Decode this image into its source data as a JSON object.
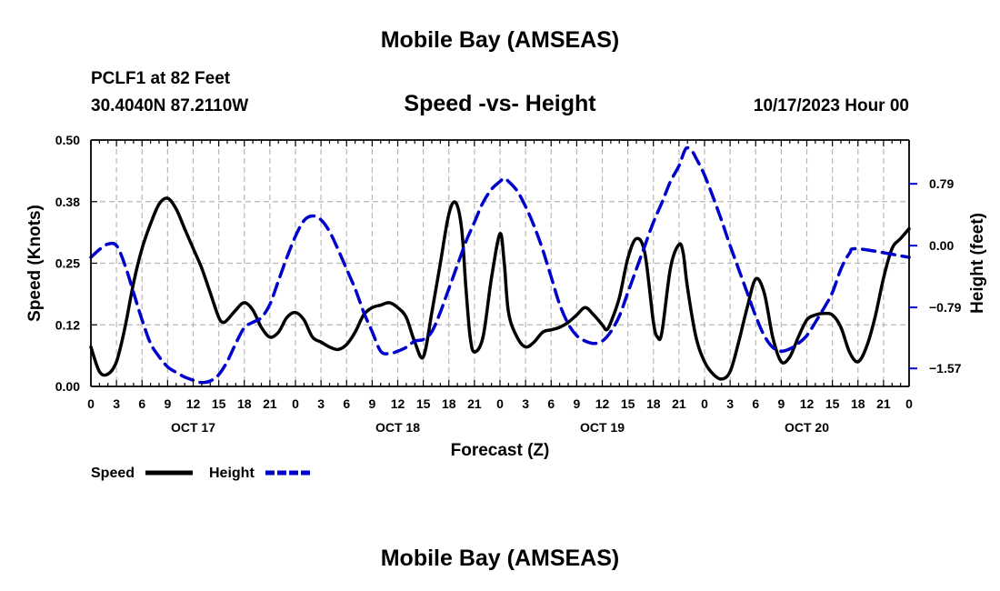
{
  "header": {
    "title": "Mobile Bay (AMSEAS)",
    "station": "PCLF1 at 82 Feet",
    "coordinates": "30.4040N  87.2110W",
    "subtitle": "Speed -vs- Height",
    "datetime": "10/17/2023 Hour 00"
  },
  "footer": {
    "title": "Mobile Bay (AMSEAS)"
  },
  "chart_data": {
    "type": "line",
    "title": "Speed -vs- Height",
    "xlabel": "Forecast (Z)",
    "ylabel": "Speed (Knots)",
    "y2label": "Height (feet)",
    "xlim": [
      0,
      96
    ],
    "ylim": [
      0,
      0.5
    ],
    "y2lim": [
      -1.8,
      1.35
    ],
    "grid": true,
    "legend": "bottom-left",
    "x_ticks": [
      0,
      3,
      6,
      9,
      12,
      15,
      18,
      21,
      24,
      27,
      30,
      33,
      36,
      39,
      42,
      45,
      48,
      51,
      54,
      57,
      60,
      63,
      66,
      69,
      72,
      75,
      78,
      81,
      84,
      87,
      90,
      93,
      96
    ],
    "x_tick_labels": [
      "0",
      "3",
      "6",
      "9",
      "12",
      "15",
      "18",
      "21",
      "0",
      "3",
      "6",
      "9",
      "12",
      "15",
      "18",
      "21",
      "0",
      "3",
      "6",
      "9",
      "12",
      "15",
      "18",
      "21",
      "0",
      "3",
      "6",
      "9",
      "12",
      "15",
      "18",
      "21",
      "0"
    ],
    "day_labels": [
      {
        "label": "OCT 17",
        "x": 12
      },
      {
        "label": "OCT 18",
        "x": 36
      },
      {
        "label": "OCT 19",
        "x": 60
      },
      {
        "label": "OCT 20",
        "x": 84
      }
    ],
    "y_ticks": [
      0.0,
      0.125,
      0.25,
      0.375,
      0.5
    ],
    "y_tick_labels": [
      "0.00",
      "0.12",
      "0.25",
      "0.38",
      "0.50"
    ],
    "y2_ticks": [
      0.79,
      0.0,
      -0.79,
      -1.57
    ],
    "y2_tick_labels": [
      "0.79",
      "0.00",
      "−0.79",
      "−1.57"
    ],
    "series": [
      {
        "name": "Speed",
        "axis": "left",
        "color": "#000000",
        "dash": "solid",
        "points": [
          [
            0,
            0.08
          ],
          [
            1,
            0.03
          ],
          [
            2,
            0.025
          ],
          [
            3,
            0.05
          ],
          [
            4,
            0.12
          ],
          [
            5,
            0.21
          ],
          [
            6,
            0.28
          ],
          [
            7,
            0.33
          ],
          [
            8,
            0.37
          ],
          [
            9,
            0.382
          ],
          [
            10,
            0.36
          ],
          [
            11,
            0.32
          ],
          [
            12,
            0.28
          ],
          [
            13,
            0.24
          ],
          [
            14,
            0.19
          ],
          [
            15,
            0.14
          ],
          [
            15.5,
            0.13
          ],
          [
            16,
            0.135
          ],
          [
            17,
            0.155
          ],
          [
            18,
            0.17
          ],
          [
            19,
            0.155
          ],
          [
            20,
            0.12
          ],
          [
            21,
            0.1
          ],
          [
            22,
            0.11
          ],
          [
            23,
            0.14
          ],
          [
            24,
            0.15
          ],
          [
            25,
            0.135
          ],
          [
            26,
            0.1
          ],
          [
            27,
            0.09
          ],
          [
            28,
            0.08
          ],
          [
            29,
            0.075
          ],
          [
            30,
            0.085
          ],
          [
            31,
            0.11
          ],
          [
            32,
            0.145
          ],
          [
            33,
            0.16
          ],
          [
            34,
            0.165
          ],
          [
            35,
            0.17
          ],
          [
            36,
            0.16
          ],
          [
            37,
            0.14
          ],
          [
            38,
            0.09
          ],
          [
            39,
            0.06
          ],
          [
            40,
            0.15
          ],
          [
            41,
            0.25
          ],
          [
            42,
            0.35
          ],
          [
            42.8,
            0.373
          ],
          [
            43.5,
            0.32
          ],
          [
            44,
            0.2
          ],
          [
            44.5,
            0.1
          ],
          [
            45,
            0.07
          ],
          [
            46,
            0.1
          ],
          [
            47,
            0.22
          ],
          [
            48,
            0.31
          ],
          [
            48.5,
            0.25
          ],
          [
            49,
            0.15
          ],
          [
            50,
            0.1
          ],
          [
            51,
            0.08
          ],
          [
            52,
            0.09
          ],
          [
            53,
            0.11
          ],
          [
            54,
            0.115
          ],
          [
            55,
            0.12
          ],
          [
            56,
            0.13
          ],
          [
            57,
            0.145
          ],
          [
            58,
            0.16
          ],
          [
            59,
            0.145
          ],
          [
            60,
            0.125
          ],
          [
            60.5,
            0.115
          ],
          [
            61,
            0.13
          ],
          [
            62,
            0.18
          ],
          [
            63,
            0.26
          ],
          [
            64,
            0.3
          ],
          [
            65,
            0.27
          ],
          [
            66,
            0.13
          ],
          [
            66.5,
            0.1
          ],
          [
            67,
            0.11
          ],
          [
            68,
            0.24
          ],
          [
            69,
            0.288
          ],
          [
            69.5,
            0.27
          ],
          [
            70,
            0.2
          ],
          [
            71,
            0.1
          ],
          [
            72,
            0.05
          ],
          [
            73,
            0.025
          ],
          [
            74,
            0.015
          ],
          [
            75,
            0.03
          ],
          [
            76,
            0.09
          ],
          [
            77,
            0.16
          ],
          [
            78,
            0.218
          ],
          [
            79,
            0.19
          ],
          [
            80,
            0.1
          ],
          [
            81,
            0.05
          ],
          [
            82,
            0.06
          ],
          [
            83,
            0.1
          ],
          [
            84,
            0.135
          ],
          [
            85,
            0.145
          ],
          [
            86,
            0.148
          ],
          [
            87,
            0.145
          ],
          [
            88,
            0.12
          ],
          [
            89,
            0.07
          ],
          [
            90,
            0.05
          ],
          [
            91,
            0.08
          ],
          [
            92,
            0.14
          ],
          [
            93,
            0.22
          ],
          [
            94,
            0.28
          ],
          [
            95,
            0.3
          ],
          [
            96,
            0.32
          ]
        ]
      },
      {
        "name": "Height",
        "axis": "right",
        "color": "#0000cc",
        "dash": "dashed",
        "points": [
          [
            0,
            -0.15
          ],
          [
            1,
            -0.05
          ],
          [
            2,
            0.02
          ],
          [
            3,
            0.0
          ],
          [
            4,
            -0.25
          ],
          [
            5,
            -0.6
          ],
          [
            6,
            -0.95
          ],
          [
            7,
            -1.25
          ],
          [
            8,
            -1.42
          ],
          [
            9,
            -1.55
          ],
          [
            10,
            -1.62
          ],
          [
            11,
            -1.68
          ],
          [
            12,
            -1.72
          ],
          [
            13,
            -1.75
          ],
          [
            14,
            -1.73
          ],
          [
            15,
            -1.65
          ],
          [
            16,
            -1.48
          ],
          [
            17,
            -1.25
          ],
          [
            18,
            -1.05
          ],
          [
            19,
            -0.98
          ],
          [
            20,
            -0.92
          ],
          [
            21,
            -0.75
          ],
          [
            22,
            -0.45
          ],
          [
            23,
            -0.15
          ],
          [
            24,
            0.12
          ],
          [
            25,
            0.32
          ],
          [
            26,
            0.38
          ],
          [
            27,
            0.33
          ],
          [
            28,
            0.18
          ],
          [
            29,
            -0.05
          ],
          [
            30,
            -0.3
          ],
          [
            31,
            -0.55
          ],
          [
            32,
            -0.85
          ],
          [
            33,
            -1.1
          ],
          [
            34,
            -1.35
          ],
          [
            35,
            -1.38
          ],
          [
            36,
            -1.35
          ],
          [
            37,
            -1.3
          ],
          [
            38,
            -1.22
          ],
          [
            39,
            -1.2
          ],
          [
            40,
            -1.1
          ],
          [
            41,
            -0.85
          ],
          [
            42,
            -0.55
          ],
          [
            43,
            -0.25
          ],
          [
            44,
            0.05
          ],
          [
            45,
            0.3
          ],
          [
            46,
            0.55
          ],
          [
            47,
            0.72
          ],
          [
            48,
            0.82
          ],
          [
            48.5,
            0.86
          ],
          [
            49,
            0.82
          ],
          [
            50,
            0.7
          ],
          [
            51,
            0.5
          ],
          [
            52,
            0.25
          ],
          [
            53,
            -0.05
          ],
          [
            54,
            -0.4
          ],
          [
            55,
            -0.75
          ],
          [
            56,
            -1.0
          ],
          [
            57,
            -1.15
          ],
          [
            58,
            -1.22
          ],
          [
            59,
            -1.25
          ],
          [
            60,
            -1.22
          ],
          [
            61,
            -1.1
          ],
          [
            62,
            -0.9
          ],
          [
            63,
            -0.6
          ],
          [
            64,
            -0.3
          ],
          [
            65,
            0.0
          ],
          [
            66,
            0.3
          ],
          [
            67,
            0.55
          ],
          [
            68,
            0.82
          ],
          [
            69,
            1.02
          ],
          [
            69.8,
            1.24
          ],
          [
            70.5,
            1.21
          ],
          [
            71,
            1.12
          ],
          [
            72,
            0.9
          ],
          [
            73,
            0.62
          ],
          [
            74,
            0.32
          ],
          [
            75,
            0.0
          ],
          [
            76,
            -0.3
          ],
          [
            77,
            -0.6
          ],
          [
            78,
            -0.9
          ],
          [
            79,
            -1.15
          ],
          [
            80,
            -1.3
          ],
          [
            81,
            -1.35
          ],
          [
            82,
            -1.32
          ],
          [
            83,
            -1.25
          ],
          [
            84,
            -1.15
          ],
          [
            85,
            -0.98
          ],
          [
            86,
            -0.8
          ],
          [
            87,
            -0.6
          ],
          [
            88,
            -0.3
          ],
          [
            89,
            -0.1
          ],
          [
            90,
            -0.04
          ],
          [
            96,
            -0.15
          ]
        ]
      }
    ]
  }
}
